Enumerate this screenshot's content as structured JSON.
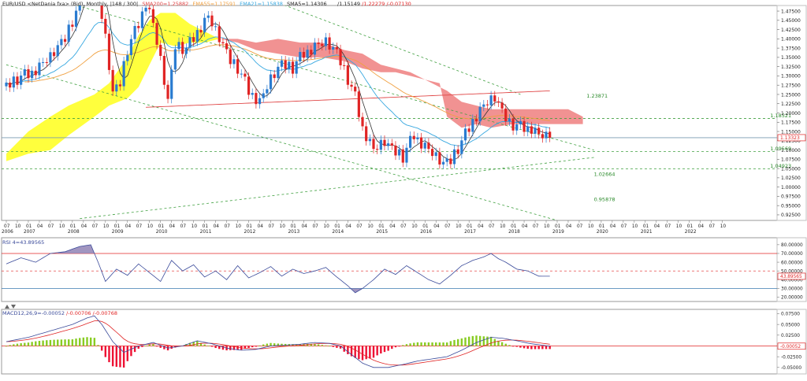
{
  "header": {
    "symbol_line": "EUR/USD <NetDania fxa> (Bid), Monthly, |148 / 300|",
    "sma200": "SMA200=1.25882",
    "ema55": "EMA55=1.17591",
    "ema21": "EMA21=1.15838",
    "sma5": "SMA5=1.14306",
    "price_a": "/1.15149",
    "price_b": "/1.22279",
    "price_c": "/-0.07130"
  },
  "colors": {
    "candle_up": "#2a7bd0",
    "candle_down": "#e02424",
    "kumo_bull": "#ffff33",
    "kumo_bear": "#f08c8c",
    "sma200": "#e04848",
    "ema55": "#f0a040",
    "ema21": "#38a8e0",
    "sma5": "#333333",
    "trend": "#40a040",
    "rsi_line": "#3a4a9a",
    "rsi_fill": "#8a7ab0",
    "macd_line": "#3a4a9a",
    "signal_line": "#e02424",
    "hist_pos": "#88cc22",
    "hist_neg": "#ee1133"
  },
  "price_axis": {
    "ticks": [
      "1.47500",
      "1.45000",
      "1.42500",
      "1.40000",
      "1.37500",
      "1.35000",
      "1.32500",
      "1.30000",
      "1.27500",
      "1.25000",
      "1.22500",
      "1.20000",
      "1.17500",
      "1.15000",
      "1.12500",
      "1.10000",
      "1.07500",
      "1.05000",
      "1.02500",
      "1.00000",
      "0.97500",
      "0.95000",
      "0.92500"
    ],
    "current": "1.13323"
  },
  "level_labels": [
    "1.23871",
    "1.18521",
    "1.09569",
    "1.04923",
    "1.02664",
    "0.95878"
  ],
  "time_axis": {
    "months": [
      "07",
      "10",
      "01",
      "04",
      "07",
      "10",
      "01",
      "04",
      "07",
      "10",
      "01",
      "04",
      "07",
      "10",
      "01",
      "04",
      "07",
      "10",
      "01",
      "04",
      "07",
      "10",
      "01",
      "04",
      "07",
      "10",
      "01",
      "04",
      "07",
      "10",
      "01",
      "04",
      "07",
      "10",
      "01",
      "04",
      "07",
      "10",
      "01",
      "04",
      "07",
      "10",
      "01",
      "04",
      "07",
      "10",
      "01",
      "04",
      "07",
      "10",
      "01",
      "04",
      "07",
      "10",
      "01",
      "04",
      "07",
      "10",
      "01",
      "04",
      "07",
      "10",
      "01",
      "04",
      "07",
      "10"
    ],
    "years": [
      "2006",
      "2007",
      "2008",
      "2009",
      "2010",
      "2011",
      "2012",
      "2013",
      "2014",
      "2015",
      "2016",
      "2017",
      "2018",
      "2019",
      "2020",
      "2021",
      "2022"
    ]
  },
  "rsi": {
    "label": "RSI 4=43.89565",
    "ticks": [
      "80.00000",
      "70.00000",
      "60.00000",
      "50.00000",
      "40.00000",
      "30.00000",
      "20.00000"
    ],
    "current": "43.89565"
  },
  "macd": {
    "label": "MACD12,26,9=-0.00052",
    "signal": "/-0.00706",
    "hist": "/-0.00768",
    "ticks": [
      "0.07500",
      "0.05000",
      "0.02500",
      "-0.02500",
      "-0.05000"
    ],
    "current": "-0.00052"
  },
  "chart_data": [
    {
      "type": "candlestick",
      "title": "EUR/USD <NetDania fxa> (Bid), Monthly",
      "xlabel": "",
      "ylabel": "",
      "ylim": [
        0.91,
        1.49
      ],
      "x_range": [
        "2006-07",
        "2022-12"
      ],
      "grid": false,
      "indicators": [
        "Ichimoku cloud",
        "SMA200",
        "EMA55",
        "EMA21",
        "SMA5"
      ],
      "series": [
        {
          "name": "SMA200",
          "values": [
            1.259
          ]
        },
        {
          "name": "EMA55",
          "values": [
            1.1759
          ]
        },
        {
          "name": "EMA21",
          "values": [
            1.1584
          ]
        },
        {
          "name": "SMA5",
          "values": [
            1.1431
          ]
        }
      ],
      "horizontal_levels": [
        1.18521,
        1.13323,
        1.09569,
        1.04923
      ],
      "trend_labels": [
        1.23871,
        1.02664,
        0.95878
      ],
      "last_close": 1.13323
    },
    {
      "type": "line",
      "title": "RSI 4=43.89565",
      "ylim": [
        15,
        88
      ],
      "levels": [
        70,
        50,
        30
      ],
      "series": [
        {
          "name": "RSI 4",
          "values": [
            43.89565
          ]
        }
      ]
    },
    {
      "type": "bar",
      "title": "MACD12,26,9=-0.00052",
      "ylim": [
        -0.065,
        0.085
      ],
      "series": [
        {
          "name": "MACD",
          "values": [
            -0.00052
          ]
        },
        {
          "name": "Signal",
          "values": [
            -0.00706
          ]
        },
        {
          "name": "Histogram",
          "values": [
            -0.00768
          ]
        }
      ]
    }
  ]
}
